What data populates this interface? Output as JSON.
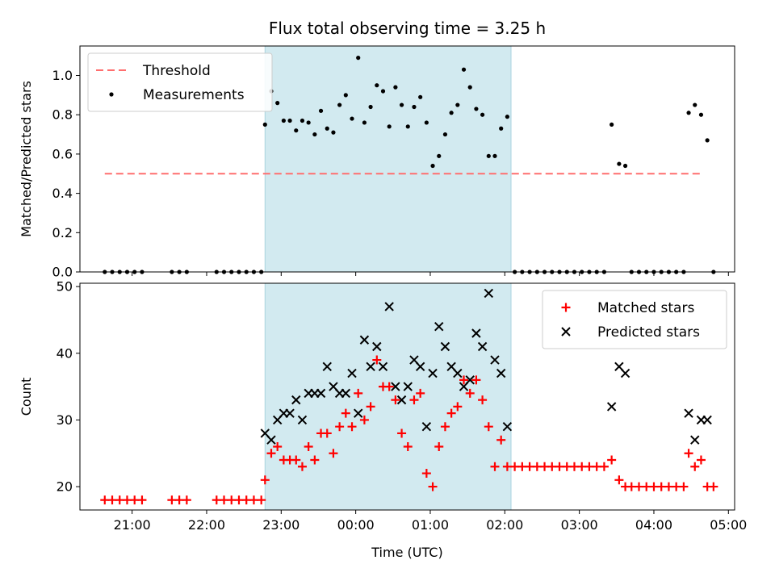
{
  "chart_data": [
    {
      "type": "scatter",
      "title": "Flux total observing time = 3.25 h",
      "xlabel": "",
      "ylabel": "Matched/Predicted stars",
      "xlim": [
        "20:18",
        "05:05"
      ],
      "ylim": [
        0,
        1.15
      ],
      "yticks": [
        "0.0",
        "0.2",
        "0.4",
        "0.6",
        "0.8",
        "1.0"
      ],
      "shaded_region": [
        "22:47",
        "02:05"
      ],
      "shaded_color": "#d2eaf0",
      "grid": false,
      "legend_position": "top-left",
      "series": [
        {
          "name": "Threshold",
          "kind": "dashed-line",
          "color": "#ff6e6e",
          "x": [
            "20:38",
            "04:38"
          ],
          "y": [
            0.5,
            0.5
          ]
        },
        {
          "name": "Measurements",
          "kind": "dot",
          "color": "#000000",
          "points": [
            [
              "20:38",
              0
            ],
            [
              "20:44",
              0
            ],
            [
              "20:50",
              0
            ],
            [
              "20:56",
              0
            ],
            [
              "21:02",
              0
            ],
            [
              "21:08",
              0
            ],
            [
              "21:32",
              0
            ],
            [
              "21:38",
              0
            ],
            [
              "21:44",
              0
            ],
            [
              "22:08",
              0
            ],
            [
              "22:14",
              0
            ],
            [
              "22:20",
              0
            ],
            [
              "22:26",
              0
            ],
            [
              "22:32",
              0
            ],
            [
              "22:38",
              0
            ],
            [
              "22:44",
              0
            ],
            [
              "22:47",
              0.75
            ],
            [
              "22:52",
              0.92
            ],
            [
              "22:57",
              0.86
            ],
            [
              "23:02",
              0.77
            ],
            [
              "23:07",
              0.77
            ],
            [
              "23:12",
              0.72
            ],
            [
              "23:17",
              0.77
            ],
            [
              "23:22",
              0.76
            ],
            [
              "23:27",
              0.7
            ],
            [
              "23:32",
              0.82
            ],
            [
              "23:37",
              0.73
            ],
            [
              "23:42",
              0.71
            ],
            [
              "23:47",
              0.85
            ],
            [
              "23:52",
              0.9
            ],
            [
              "23:57",
              0.78
            ],
            [
              "00:02",
              1.09
            ],
            [
              "00:07",
              0.76
            ],
            [
              "00:12",
              0.84
            ],
            [
              "00:17",
              0.95
            ],
            [
              "00:22",
              0.92
            ],
            [
              "00:27",
              0.74
            ],
            [
              "00:32",
              0.94
            ],
            [
              "00:37",
              0.85
            ],
            [
              "00:42",
              0.74
            ],
            [
              "00:47",
              0.84
            ],
            [
              "00:52",
              0.89
            ],
            [
              "00:57",
              0.76
            ],
            [
              "01:02",
              0.54
            ],
            [
              "01:07",
              0.59
            ],
            [
              "01:12",
              0.7
            ],
            [
              "01:17",
              0.81
            ],
            [
              "01:22",
              0.85
            ],
            [
              "01:27",
              1.03
            ],
            [
              "01:32",
              0.94
            ],
            [
              "01:37",
              0.83
            ],
            [
              "01:42",
              0.8
            ],
            [
              "01:47",
              0.59
            ],
            [
              "01:52",
              0.59
            ],
            [
              "01:57",
              0.73
            ],
            [
              "02:02",
              0.79
            ],
            [
              "02:08",
              0
            ],
            [
              "02:14",
              0
            ],
            [
              "02:20",
              0
            ],
            [
              "02:26",
              0
            ],
            [
              "02:32",
              0
            ],
            [
              "02:38",
              0
            ],
            [
              "02:44",
              0
            ],
            [
              "02:50",
              0
            ],
            [
              "02:56",
              0
            ],
            [
              "03:02",
              0
            ],
            [
              "03:08",
              0
            ],
            [
              "03:14",
              0
            ],
            [
              "03:20",
              0
            ],
            [
              "03:26",
              0.75
            ],
            [
              "03:32",
              0.55
            ],
            [
              "03:37",
              0.54
            ],
            [
              "03:42",
              0
            ],
            [
              "03:48",
              0
            ],
            [
              "03:54",
              0
            ],
            [
              "04:00",
              0
            ],
            [
              "04:06",
              0
            ],
            [
              "04:12",
              0
            ],
            [
              "04:18",
              0
            ],
            [
              "04:24",
              0
            ],
            [
              "04:28",
              0.81
            ],
            [
              "04:33",
              0.85
            ],
            [
              "04:38",
              0.8
            ],
            [
              "04:43",
              0.67
            ],
            [
              "04:48",
              0
            ]
          ]
        }
      ]
    },
    {
      "type": "scatter",
      "title": "",
      "xlabel": "Time (UTC)",
      "ylabel": "Count",
      "xlim": [
        "20:18",
        "05:05"
      ],
      "ylim": [
        16.5,
        50.5
      ],
      "yticks": [
        "20",
        "30",
        "40",
        "50"
      ],
      "xticks": [
        "21:00",
        "22:00",
        "23:00",
        "00:00",
        "01:00",
        "02:00",
        "03:00",
        "04:00",
        "05:00"
      ],
      "shaded_region": [
        "22:47",
        "02:05"
      ],
      "shaded_color": "#d2eaf0",
      "grid": false,
      "legend_position": "top-right",
      "series": [
        {
          "name": "Matched stars",
          "kind": "plus",
          "color": "#ff0000",
          "points": [
            [
              "20:38",
              18
            ],
            [
              "20:44",
              18
            ],
            [
              "20:50",
              18
            ],
            [
              "20:56",
              18
            ],
            [
              "21:02",
              18
            ],
            [
              "21:08",
              18
            ],
            [
              "21:32",
              18
            ],
            [
              "21:38",
              18
            ],
            [
              "21:44",
              18
            ],
            [
              "22:08",
              18
            ],
            [
              "22:14",
              18
            ],
            [
              "22:20",
              18
            ],
            [
              "22:26",
              18
            ],
            [
              "22:32",
              18
            ],
            [
              "22:38",
              18
            ],
            [
              "22:44",
              18
            ],
            [
              "22:47",
              21
            ],
            [
              "22:52",
              25
            ],
            [
              "22:57",
              26
            ],
            [
              "23:02",
              24
            ],
            [
              "23:07",
              24
            ],
            [
              "23:12",
              24
            ],
            [
              "23:17",
              23
            ],
            [
              "23:22",
              26
            ],
            [
              "23:27",
              24
            ],
            [
              "23:32",
              28
            ],
            [
              "23:37",
              28
            ],
            [
              "23:42",
              25
            ],
            [
              "23:47",
              29
            ],
            [
              "23:52",
              31
            ],
            [
              "23:57",
              29
            ],
            [
              "00:02",
              34
            ],
            [
              "00:07",
              30
            ],
            [
              "00:12",
              32
            ],
            [
              "00:17",
              39
            ],
            [
              "00:22",
              35
            ],
            [
              "00:27",
              35
            ],
            [
              "00:32",
              33
            ],
            [
              "00:37",
              28
            ],
            [
              "00:42",
              26
            ],
            [
              "00:47",
              33
            ],
            [
              "00:52",
              34
            ],
            [
              "00:57",
              22
            ],
            [
              "01:02",
              20
            ],
            [
              "01:07",
              26
            ],
            [
              "01:12",
              29
            ],
            [
              "01:17",
              31
            ],
            [
              "01:22",
              32
            ],
            [
              "01:27",
              36
            ],
            [
              "01:32",
              34
            ],
            [
              "01:37",
              36
            ],
            [
              "01:42",
              33
            ],
            [
              "01:47",
              29
            ],
            [
              "01:52",
              23
            ],
            [
              "01:57",
              27
            ],
            [
              "02:02",
              23
            ],
            [
              "02:08",
              23
            ],
            [
              "02:14",
              23
            ],
            [
              "02:20",
              23
            ],
            [
              "02:26",
              23
            ],
            [
              "02:32",
              23
            ],
            [
              "02:38",
              23
            ],
            [
              "02:44",
              23
            ],
            [
              "02:50",
              23
            ],
            [
              "02:56",
              23
            ],
            [
              "03:02",
              23
            ],
            [
              "03:08",
              23
            ],
            [
              "03:14",
              23
            ],
            [
              "03:20",
              23
            ],
            [
              "03:26",
              24
            ],
            [
              "03:32",
              21
            ],
            [
              "03:37",
              20
            ],
            [
              "03:42",
              20
            ],
            [
              "03:48",
              20
            ],
            [
              "03:54",
              20
            ],
            [
              "04:00",
              20
            ],
            [
              "04:06",
              20
            ],
            [
              "04:12",
              20
            ],
            [
              "04:18",
              20
            ],
            [
              "04:24",
              20
            ],
            [
              "04:28",
              25
            ],
            [
              "04:33",
              23
            ],
            [
              "04:38",
              24
            ],
            [
              "04:43",
              20
            ],
            [
              "04:48",
              20
            ]
          ]
        },
        {
          "name": "Predicted stars",
          "kind": "cross",
          "color": "#000000",
          "points": [
            [
              "22:47",
              28
            ],
            [
              "22:52",
              27
            ],
            [
              "22:57",
              30
            ],
            [
              "23:02",
              31
            ],
            [
              "23:07",
              31
            ],
            [
              "23:12",
              33
            ],
            [
              "23:17",
              30
            ],
            [
              "23:22",
              34
            ],
            [
              "23:27",
              34
            ],
            [
              "23:32",
              34
            ],
            [
              "23:37",
              38
            ],
            [
              "23:42",
              35
            ],
            [
              "23:47",
              34
            ],
            [
              "23:52",
              34
            ],
            [
              "23:57",
              37
            ],
            [
              "00:02",
              31
            ],
            [
              "00:07",
              42
            ],
            [
              "00:12",
              38
            ],
            [
              "00:17",
              41
            ],
            [
              "00:22",
              38
            ],
            [
              "00:27",
              47
            ],
            [
              "00:32",
              35
            ],
            [
              "00:37",
              33
            ],
            [
              "00:42",
              35
            ],
            [
              "00:47",
              39
            ],
            [
              "00:52",
              38
            ],
            [
              "00:57",
              29
            ],
            [
              "01:02",
              37
            ],
            [
              "01:07",
              44
            ],
            [
              "01:12",
              41
            ],
            [
              "01:17",
              38
            ],
            [
              "01:22",
              37
            ],
            [
              "01:27",
              35
            ],
            [
              "01:32",
              36
            ],
            [
              "01:37",
              43
            ],
            [
              "01:42",
              41
            ],
            [
              "01:47",
              49
            ],
            [
              "01:52",
              39
            ],
            [
              "01:57",
              37
            ],
            [
              "02:02",
              29
            ],
            [
              "03:26",
              32
            ],
            [
              "03:32",
              38
            ],
            [
              "03:37",
              37
            ],
            [
              "04:28",
              31
            ],
            [
              "04:33",
              27
            ],
            [
              "04:38",
              30
            ],
            [
              "04:43",
              30
            ]
          ]
        }
      ]
    }
  ]
}
